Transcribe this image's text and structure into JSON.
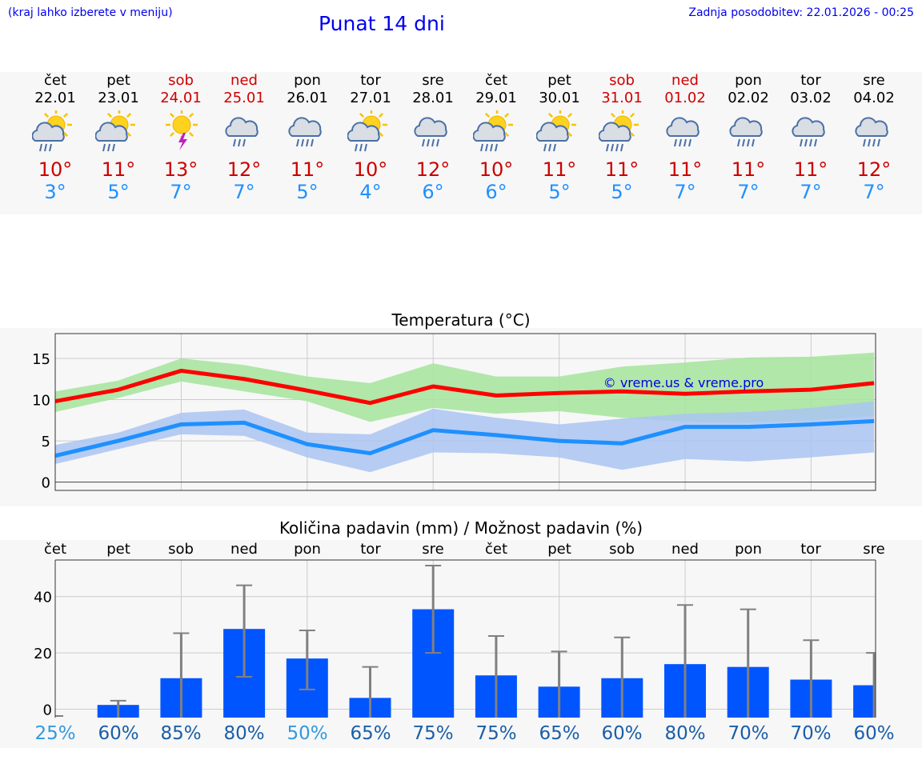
{
  "header": {
    "left_note": "(kraj lahko izberete v meniju)",
    "title": "Punat 14 dni",
    "updated": "Zadnja posodobitev: 22.01.2026 - 00:25"
  },
  "colors": {
    "max": "#ff0000",
    "min": "#1e90ff",
    "bar": "#0055ff",
    "maxband": "#a8e4a0",
    "minband": "#aac4f2"
  },
  "days": [
    {
      "name": "čet",
      "date": "22.01",
      "icon": "sun-cloud-rain-icon",
      "tmax": "10°",
      "tmin": "3°",
      "weekend": false
    },
    {
      "name": "pet",
      "date": "23.01",
      "icon": "sun-cloud-rain-icon",
      "tmax": "11°",
      "tmin": "5°",
      "weekend": false
    },
    {
      "name": "sob",
      "date": "24.01",
      "icon": "sun-thunder-icon",
      "tmax": "13°",
      "tmin": "7°",
      "weekend": true
    },
    {
      "name": "ned",
      "date": "25.01",
      "icon": "cloud-rain-icon",
      "tmax": "12°",
      "tmin": "7°",
      "weekend": true
    },
    {
      "name": "pon",
      "date": "26.01",
      "icon": "cloud-heavy-rain-icon",
      "tmax": "11°",
      "tmin": "5°",
      "weekend": false
    },
    {
      "name": "tor",
      "date": "27.01",
      "icon": "sun-cloud-rain-icon",
      "tmax": "10°",
      "tmin": "4°",
      "weekend": false
    },
    {
      "name": "sre",
      "date": "28.01",
      "icon": "cloud-heavy-rain-icon",
      "tmax": "12°",
      "tmin": "6°",
      "weekend": false
    },
    {
      "name": "čet",
      "date": "29.01",
      "icon": "sun-cloud-heavy-rain-icon",
      "tmax": "10°",
      "tmin": "6°",
      "weekend": false
    },
    {
      "name": "pet",
      "date": "30.01",
      "icon": "sun-cloud-rain-icon",
      "tmax": "11°",
      "tmin": "5°",
      "weekend": false
    },
    {
      "name": "sob",
      "date": "31.01",
      "icon": "sun-cloud-heavy-rain-icon",
      "tmax": "11°",
      "tmin": "5°",
      "weekend": true
    },
    {
      "name": "ned",
      "date": "01.02",
      "icon": "cloud-heavy-rain-icon",
      "tmax": "11°",
      "tmin": "7°",
      "weekend": true
    },
    {
      "name": "pon",
      "date": "02.02",
      "icon": "cloud-heavy-rain-icon",
      "tmax": "11°",
      "tmin": "7°",
      "weekend": false
    },
    {
      "name": "tor",
      "date": "03.02",
      "icon": "cloud-heavy-rain-icon",
      "tmax": "11°",
      "tmin": "7°",
      "weekend": false
    },
    {
      "name": "sre",
      "date": "04.02",
      "icon": "cloud-heavy-rain-icon",
      "tmax": "12°",
      "tmin": "7°",
      "weekend": false
    }
  ],
  "chart_data": [
    {
      "type": "line",
      "title": "Temperatura (°C)",
      "ylim": [
        -1,
        18
      ],
      "yticks": [
        0,
        5,
        10,
        15
      ],
      "x": [
        0,
        1,
        2,
        3,
        4,
        5,
        6,
        7,
        8,
        9,
        10,
        11,
        12,
        13
      ],
      "series": [
        {
          "name": "max",
          "values": [
            9.8,
            11.2,
            13.5,
            12.5,
            11.1,
            9.6,
            11.6,
            10.5,
            10.8,
            11.0,
            10.7,
            11.0,
            11.2,
            12.0
          ],
          "band_low": [
            8.5,
            10.2,
            12.2,
            11.0,
            9.8,
            7.3,
            9.0,
            8.3,
            8.6,
            7.8,
            7.3,
            7.2,
            7.5,
            8.0
          ],
          "band_high": [
            11.0,
            12.3,
            15.0,
            14.2,
            12.8,
            12.0,
            14.4,
            12.8,
            12.8,
            14.0,
            14.5,
            15.1,
            15.2,
            15.7
          ]
        },
        {
          "name": "min",
          "values": [
            3.2,
            5.0,
            7.0,
            7.2,
            4.6,
            3.5,
            6.3,
            5.7,
            5.0,
            4.7,
            6.7,
            6.7,
            7.0,
            7.4
          ],
          "band_low": [
            2.2,
            4.0,
            5.8,
            5.6,
            3.0,
            1.2,
            3.6,
            3.5,
            3.0,
            1.5,
            2.8,
            2.5,
            3.0,
            3.6
          ],
          "band_high": [
            4.5,
            6.0,
            8.4,
            8.8,
            6.0,
            5.8,
            8.9,
            7.8,
            7.0,
            7.7,
            8.3,
            8.5,
            9.0,
            9.8
          ]
        }
      ],
      "annotation": "© vreme.us & vreme.pro",
      "grid": true
    },
    {
      "type": "bar",
      "title": "Količina padavin (mm) / Možnost padavin (%)",
      "categories": [
        "čet",
        "pet",
        "sob",
        "ned",
        "pon",
        "tor",
        "sre",
        "čet",
        "pet",
        "sob",
        "ned",
        "pon",
        "tor",
        "sre"
      ],
      "ylim": [
        -3,
        53
      ],
      "yticks": [
        0,
        20,
        40
      ],
      "values": [
        0,
        1.5,
        11,
        28.5,
        18,
        4,
        35.5,
        12,
        8,
        11,
        16,
        15,
        10.5,
        8.5
      ],
      "error_high": [
        0,
        3,
        27,
        44,
        28,
        15,
        51,
        26,
        20.5,
        25.5,
        37,
        35.5,
        24.5,
        20
      ],
      "error_low": [
        0,
        0,
        0,
        11.5,
        7,
        0,
        20,
        0,
        0,
        0,
        0,
        0,
        0,
        0
      ],
      "chance": [
        "25%",
        "60%",
        "85%",
        "80%",
        "50%",
        "65%",
        "75%",
        "75%",
        "65%",
        "60%",
        "80%",
        "70%",
        "70%",
        "60%"
      ],
      "grid": true
    }
  ]
}
